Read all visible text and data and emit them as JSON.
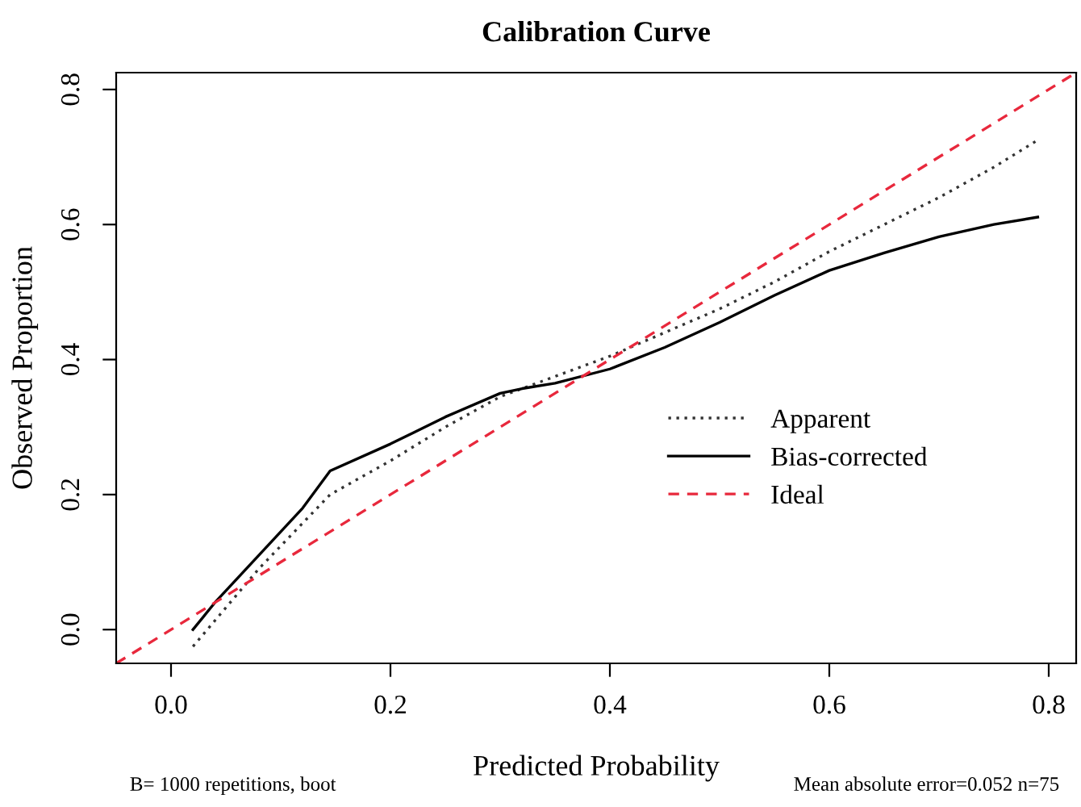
{
  "chart_data": {
    "type": "line",
    "title": "Calibration Curve",
    "xlabel": "Predicted Probability",
    "ylabel": "Observed Proportion",
    "xlim": [
      -0.05,
      0.825
    ],
    "ylim": [
      -0.05,
      0.825
    ],
    "xticks": [
      {
        "value": 0,
        "label": "0.0"
      },
      0.2,
      0.4,
      0.6,
      0.8
    ],
    "yticks": [
      {
        "value": 0,
        "label": "0.0"
      },
      0.2,
      0.4,
      0.6,
      0.8
    ],
    "grid": false,
    "legend": "bottom right",
    "series": [
      {
        "name": "Apparent",
        "color": "#333333",
        "line_style": "dotted",
        "x": [
          0.02,
          0.08,
          0.145,
          0.2,
          0.25,
          0.3,
          0.35,
          0.4,
          0.45,
          0.5,
          0.55,
          0.6,
          0.65,
          0.7,
          0.75,
          0.79
        ],
        "values": [
          -0.025,
          0.09,
          0.2,
          0.25,
          0.3,
          0.345,
          0.375,
          0.405,
          0.44,
          0.475,
          0.515,
          0.56,
          0.6,
          0.64,
          0.685,
          0.725
        ]
      },
      {
        "name": "Bias-corrected",
        "color": "#000000",
        "line_style": "solid",
        "x": [
          0.02,
          0.04,
          0.08,
          0.12,
          0.145,
          0.2,
          0.25,
          0.3,
          0.32,
          0.35,
          0.4,
          0.45,
          0.5,
          0.55,
          0.6,
          0.65,
          0.7,
          0.75,
          0.79
        ],
        "values": [
          0.0,
          0.04,
          0.11,
          0.18,
          0.235,
          0.275,
          0.315,
          0.35,
          0.357,
          0.365,
          0.386,
          0.418,
          0.455,
          0.495,
          0.532,
          0.558,
          0.582,
          0.6,
          0.611
        ]
      },
      {
        "name": "Ideal",
        "color": "#e8283c",
        "line_style": "dashed",
        "x": [
          -0.05,
          0.825
        ],
        "values": [
          -0.05,
          0.825
        ]
      }
    ],
    "annotations": [
      "B= 1000 repetitions, boot",
      "Mean absolute error=0.052 n=75"
    ]
  }
}
